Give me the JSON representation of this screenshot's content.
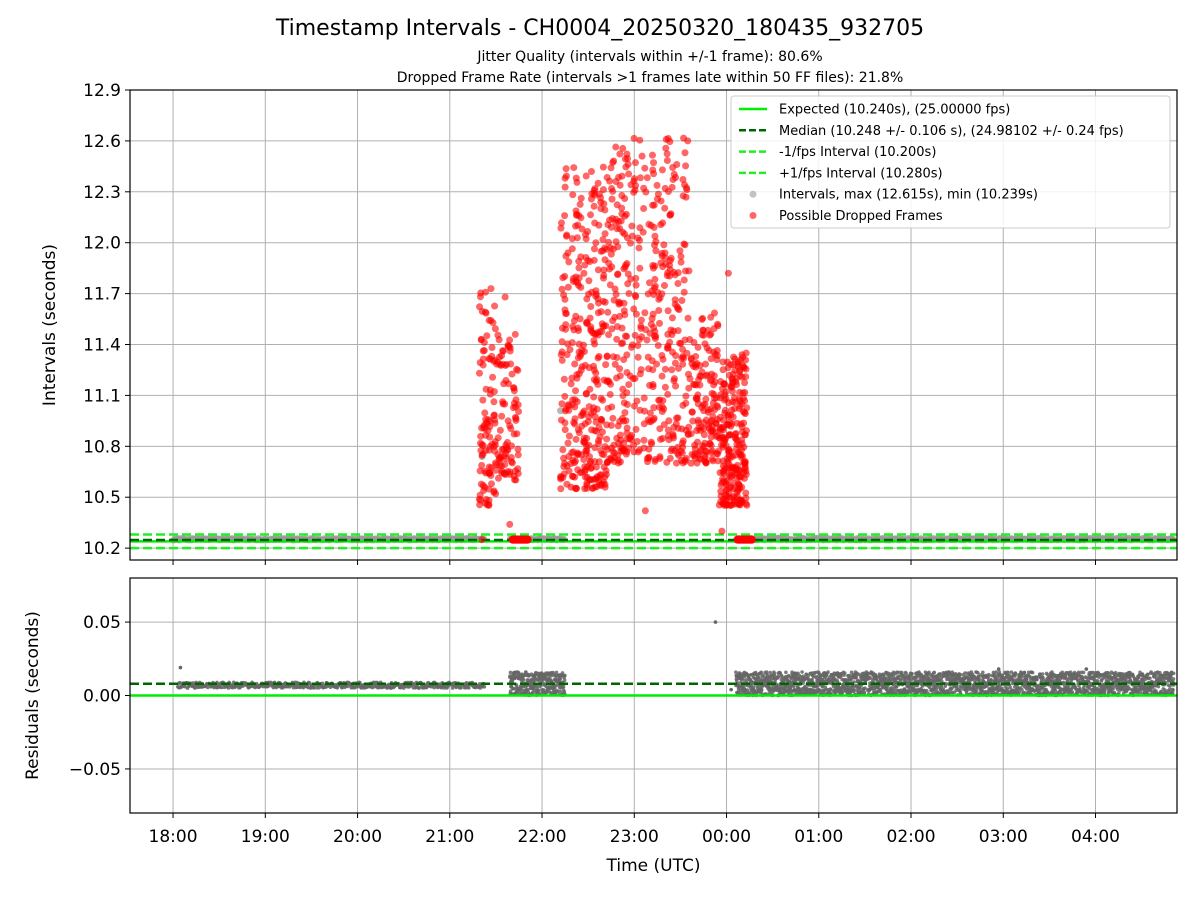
{
  "title": "Timestamp Intervals - CH0004_20250320_180435_932705",
  "subtitle_1": "Jitter Quality (intervals within +/-1 frame): 80.6%",
  "subtitle_2": "Dropped Frame Rate (intervals >1 frames late within 50 FF files): 21.8%",
  "chart_data": [
    {
      "type": "scatter",
      "panel": "top",
      "ylabel": "Intervals (seconds)",
      "ylim": [
        10.13,
        12.9
      ],
      "yticks": [
        "10.2",
        "10.5",
        "10.8",
        "11.1",
        "11.4",
        "11.7",
        "12.0",
        "12.3",
        "12.6",
        "12.9"
      ],
      "grid": true,
      "legend_position": "top-right",
      "reference_lines": [
        {
          "name": "Expected (10.240s), (25.00000 fps)",
          "y": 10.24,
          "color": "#00ee00",
          "style": "solid"
        },
        {
          "name": "Median (10.248 +/- 0.106 s), (24.98102 +/- 0.24 fps)",
          "y": 10.248,
          "color": "#006400",
          "style": "dashed"
        },
        {
          "name": "-1/fps Interval (10.200s)",
          "y": 10.2,
          "color": "#22ee22",
          "style": "dashed"
        },
        {
          "name": "+1/fps Interval (10.280s)",
          "y": 10.28,
          "color": "#22ee22",
          "style": "dashed"
        }
      ],
      "series": [
        {
          "name": "Intervals, max (12.615s), min (10.239s)",
          "color": "#999999",
          "dense_ranges": [
            {
              "x_start": 18.0,
              "x_end": 21.38,
              "y_min": 10.245,
              "y_max": 10.26
            },
            {
              "x_start": 21.65,
              "x_end": 22.25,
              "y_min": 10.245,
              "y_max": 10.26
            },
            {
              "x_start": 24.1,
              "x_end": 28.85,
              "y_min": 10.245,
              "y_max": 10.262
            }
          ],
          "points": [
            [
              21.35,
              10.74
            ],
            [
              22.2,
              11.01
            ]
          ]
        },
        {
          "name": "Possible Dropped Frames",
          "color": "#ff0000",
          "clusters": [
            {
              "x_start": 21.32,
              "x_end": 21.5,
              "y_min": 10.45,
              "y_max": 11.73,
              "n": 100
            },
            {
              "x_start": 21.5,
              "x_end": 21.75,
              "y_min": 10.6,
              "y_max": 11.5,
              "n": 90
            },
            {
              "x_start": 22.2,
              "x_end": 22.7,
              "y_min": 10.55,
              "y_max": 12.45,
              "n": 320
            },
            {
              "x_start": 22.7,
              "x_end": 23.6,
              "y_min": 10.7,
              "y_max": 12.62,
              "n": 440
            },
            {
              "x_start": 23.6,
              "x_end": 23.92,
              "y_min": 10.7,
              "y_max": 11.6,
              "n": 140
            },
            {
              "x_start": 23.92,
              "x_end": 24.22,
              "y_min": 10.45,
              "y_max": 11.35,
              "n": 240
            }
          ],
          "baseline_runs": [
            {
              "x_start": 21.68,
              "x_end": 21.85,
              "y": 10.25
            },
            {
              "x_start": 24.12,
              "x_end": 24.28,
              "y": 10.25
            }
          ],
          "points": [
            [
              21.35,
              10.25
            ],
            [
              21.65,
              10.34
            ],
            [
              21.6,
              11.68
            ],
            [
              23.12,
              10.42
            ],
            [
              23.55,
              12.53
            ],
            [
              24.02,
              11.82
            ],
            [
              23.95,
              10.3
            ],
            [
              22.25,
              12.38
            ]
          ]
        }
      ]
    },
    {
      "type": "scatter",
      "panel": "bottom",
      "xlabel": "Time (UTC)",
      "ylabel": "Residuals (seconds)",
      "ylim": [
        -0.08,
        0.08
      ],
      "yticks": [
        "−0.05",
        "0.00",
        "0.05"
      ],
      "xlim": [
        "17:32",
        "04:53"
      ],
      "xticks": [
        "18:00",
        "19:00",
        "20:00",
        "21:00",
        "22:00",
        "23:00",
        "00:00",
        "01:00",
        "02:00",
        "03:00",
        "04:00"
      ],
      "grid": true,
      "reference_lines": [
        {
          "y": 0.0,
          "color": "#00ee00",
          "style": "solid"
        },
        {
          "y": 0.008,
          "color": "#006400",
          "style": "dashed"
        }
      ],
      "series": [
        {
          "name": "Residuals",
          "color": "#666666",
          "dense_ranges": [
            {
              "x_start": 18.05,
              "x_end": 21.38,
              "y_min": 0.005,
              "y_max": 0.009
            },
            {
              "x_start": 21.65,
              "x_end": 22.25,
              "y_min": 0.0,
              "y_max": 0.016
            },
            {
              "x_start": 24.1,
              "x_end": 28.85,
              "y_min": 0.0,
              "y_max": 0.016
            }
          ],
          "points": [
            [
              18.08,
              0.019
            ],
            [
              23.88,
              0.05
            ],
            [
              27.9,
              0.018
            ],
            [
              26.95,
              0.018
            ],
            [
              24.05,
              0.004
            ]
          ]
        }
      ]
    }
  ]
}
